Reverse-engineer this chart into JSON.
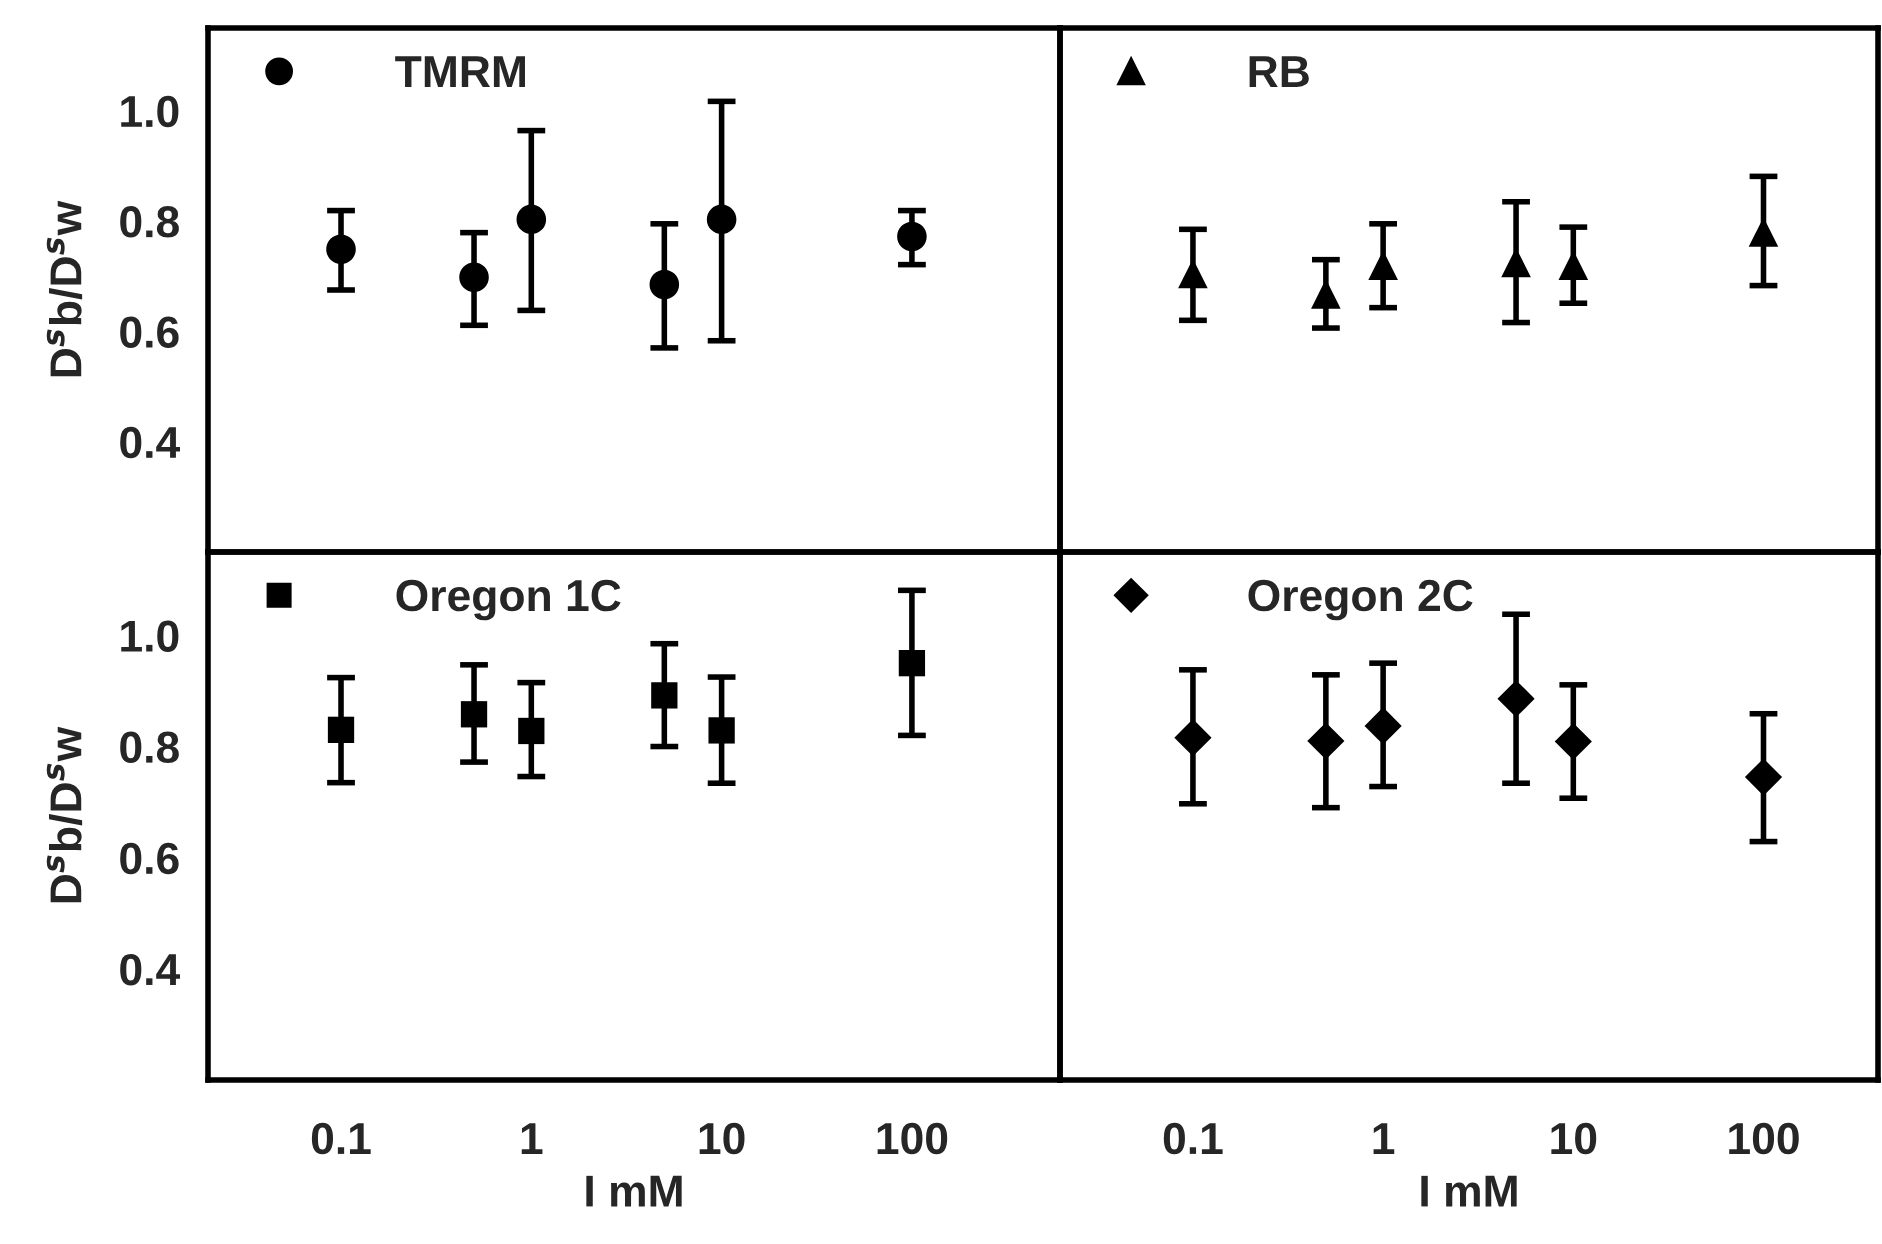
{
  "chart_data": [
    {
      "type": "scatter",
      "x": [
        0.1,
        0.5,
        1,
        5,
        10,
        100
      ],
      "ylabel": "D$^{s}$b/D$^{s}$w",
      "log": "x",
      "xlim": [
        0.02,
        600
      ],
      "ylim": [
        0.2,
        1.15
      ],
      "xticks": [
        0.1,
        1,
        10,
        100
      ],
      "yticks": [
        0.4,
        0.6,
        0.8,
        {
          "value": 1.0,
          "label": "1.0"
        }
      ],
      "tick_labels": "y",
      "marker": "circle",
      "legend": "top left",
      "grid": false,
      "series": [
        {
          "name": "TMRM",
          "color": "#000000",
          "values": [
            0.749,
            0.698,
            0.803,
            0.685,
            0.803,
            0.772
          ],
          "errors": [
            [
              0.675,
              0.819
            ],
            [
              0.611,
              0.779
            ],
            [
              0.638,
              0.964
            ],
            [
              0.57,
              0.795
            ],
            [
              0.583,
              1.017
            ],
            [
              0.721,
              0.819
            ]
          ]
        }
      ]
    },
    {
      "type": "scatter",
      "x": [
        0.1,
        0.5,
        1,
        5,
        10,
        100
      ],
      "log": "x",
      "xlim": [
        0.02,
        400
      ],
      "ylim": [
        0.2,
        1.15
      ],
      "xticks": [
        0.1,
        1,
        10,
        100
      ],
      "tick_labels": false,
      "marker": "triangle",
      "legend": "top left",
      "grid": false,
      "series": [
        {
          "name": "RB",
          "color": "#000000",
          "values": [
            0.705,
            0.668,
            0.72,
            0.725,
            0.72,
            0.78
          ],
          "errors": [
            [
              0.62,
              0.785
            ],
            [
              0.606,
              0.73
            ],
            [
              0.643,
              0.795
            ],
            [
              0.616,
              0.835
            ],
            [
              0.651,
              0.789
            ],
            [
              0.683,
              0.881
            ]
          ]
        }
      ]
    },
    {
      "type": "scatter",
      "x": [
        0.1,
        0.5,
        1,
        5,
        10,
        100
      ],
      "xlabel": "I mM",
      "ylabel": "D$^{s}$b/D$^{s}$w",
      "log": "x",
      "xlim": [
        0.02,
        600
      ],
      "ylim": [
        0.2,
        1.15
      ],
      "xticks": [
        0.1,
        1,
        10,
        100
      ],
      "yticks": [
        0.4,
        0.6,
        0.8,
        {
          "value": 1.0,
          "label": "1.0"
        }
      ],
      "marker": "square",
      "legend": "top left",
      "grid": false,
      "series": [
        {
          "name": "Oregon 1C",
          "color": "#000000",
          "values": [
            0.83,
            0.858,
            0.828,
            0.892,
            0.829,
            0.95
          ],
          "errors": [
            [
              0.735,
              0.924
            ],
            [
              0.772,
              0.947
            ],
            [
              0.746,
              0.915
            ],
            [
              0.8,
              0.985
            ],
            [
              0.734,
              0.925
            ],
            [
              0.82,
              1.081
            ]
          ]
        }
      ]
    },
    {
      "type": "scatter",
      "x": [
        0.1,
        0.5,
        1,
        5,
        10,
        100
      ],
      "xlabel": "I mM",
      "log": "x",
      "xlim": [
        0.02,
        400
      ],
      "ylim": [
        0.2,
        1.15
      ],
      "xticks": [
        0.1,
        1,
        10,
        100
      ],
      "tick_labels": "x",
      "marker": "diamond",
      "legend": "top left",
      "grid": false,
      "series": [
        {
          "name": "Oregon 2C",
          "color": "#000000",
          "values": [
            0.816,
            0.81,
            0.837,
            0.886,
            0.809,
            0.745
          ],
          "errors": [
            [
              0.697,
              0.938
            ],
            [
              0.69,
              0.929
            ],
            [
              0.728,
              0.95
            ],
            [
              0.734,
              1.038
            ],
            [
              0.707,
              0.911
            ],
            [
              0.629,
              0.859
            ]
          ]
        }
      ]
    }
  ]
}
